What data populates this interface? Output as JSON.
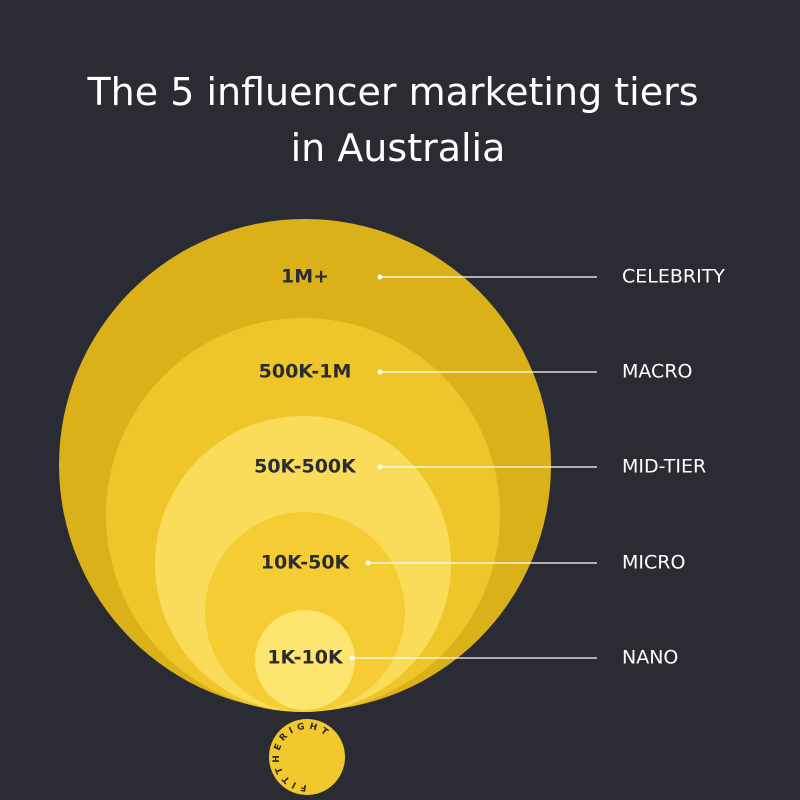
{
  "header": {
    "title_lines": [
      "The 5 influencer marketing tiers",
      "in Australia"
    ]
  },
  "tiers": [
    {
      "range": "1M+",
      "name": "CELEBRITY"
    },
    {
      "range": "500K-1M",
      "name": "MACRO"
    },
    {
      "range": "50K-500K",
      "name": "MID-TIER"
    },
    {
      "range": "10K-50K",
      "name": "MICRO"
    },
    {
      "range": "1K-10K",
      "name": "NANO"
    }
  ],
  "logo": {
    "text": "FITTHERIGHT"
  }
}
